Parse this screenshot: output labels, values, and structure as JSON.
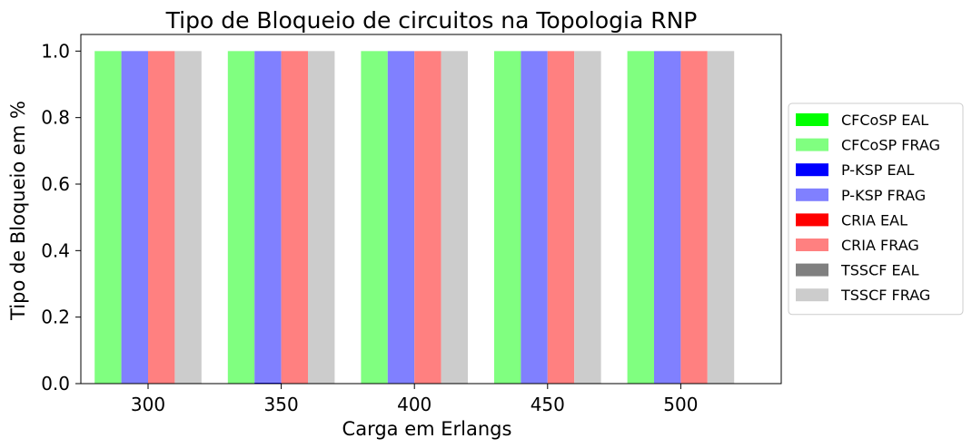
{
  "chart_data": {
    "type": "bar",
    "title": "Tipo de Bloqueio de circuitos na Topologia RNP",
    "xlabel": "Carga em Erlangs",
    "ylabel": "Tipo de Bloqueio em %",
    "categories": [
      "300",
      "350",
      "400",
      "450",
      "500"
    ],
    "ylim": [
      0,
      1.05
    ],
    "yticks": [
      "0.0",
      "0.2",
      "0.4",
      "0.6",
      "0.8",
      "1.0"
    ],
    "grid": false,
    "legend_position": "right",
    "stacked_pairs": true,
    "series": [
      {
        "name": "CFCoSP EAL",
        "color": "#00ff00",
        "values": [
          0.0,
          0.0,
          0.0,
          0.0,
          0.0
        ]
      },
      {
        "name": "CFCoSP FRAG",
        "color": "#80ff80",
        "values": [
          1.0,
          1.0,
          1.0,
          1.0,
          1.0
        ]
      },
      {
        "name": "P-KSP EAL",
        "color": "#0000ff",
        "values": [
          0.0,
          0.003,
          0.0,
          0.0,
          0.0
        ]
      },
      {
        "name": "P-KSP FRAG",
        "color": "#8080ff",
        "values": [
          1.0,
          0.997,
          1.0,
          1.0,
          1.0
        ]
      },
      {
        "name": "CRIA EAL",
        "color": "#ff0000",
        "values": [
          0.0,
          0.0,
          0.0,
          0.0,
          0.0
        ]
      },
      {
        "name": "CRIA FRAG",
        "color": "#ff8080",
        "values": [
          1.0,
          1.0,
          1.0,
          1.0,
          1.0
        ]
      },
      {
        "name": "TSSCF EAL",
        "color": "#808080",
        "values": [
          0.002,
          0.0,
          0.002,
          0.002,
          0.0
        ]
      },
      {
        "name": "TSSCF FRAG",
        "color": "#cccccc",
        "values": [
          0.998,
          1.0,
          0.998,
          0.998,
          1.0
        ]
      }
    ]
  }
}
